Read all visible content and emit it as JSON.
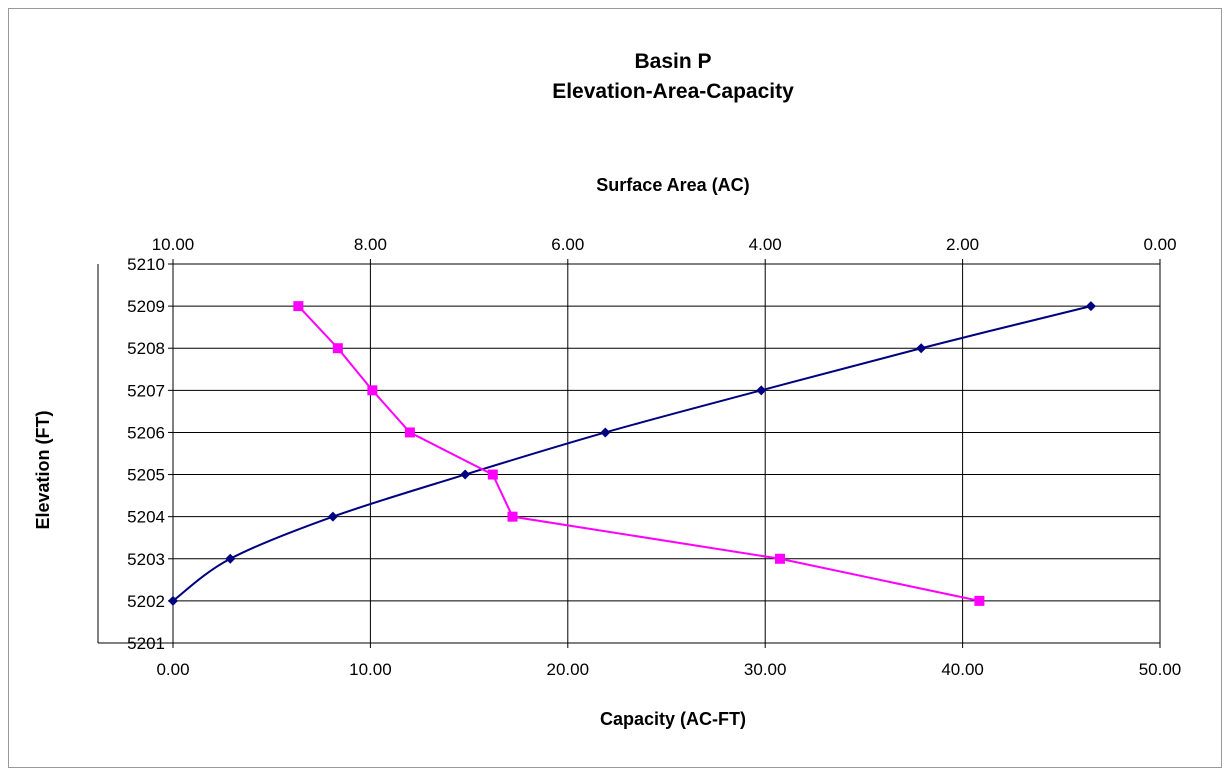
{
  "chart_data": {
    "type": "line",
    "title": [
      "Basin P",
      "Elevation-Area-Capacity"
    ],
    "top_axis": {
      "label": "Surface Area (AC)",
      "range": [
        10,
        0
      ],
      "ticks": [
        "10.00",
        "8.00",
        "6.00",
        "4.00",
        "2.00",
        "0.00"
      ],
      "tick_values": [
        10,
        8,
        6,
        4,
        2,
        0
      ]
    },
    "x_axis": {
      "label": "Capacity (AC-FT)",
      "range": [
        0,
        50
      ],
      "ticks": [
        "0.00",
        "10.00",
        "20.00",
        "30.00",
        "40.00",
        "50.00"
      ],
      "tick_values": [
        0,
        10,
        20,
        30,
        40,
        50
      ]
    },
    "y_axis": {
      "label": "Elevation (FT)",
      "range": [
        5201,
        5210
      ],
      "ticks": [
        "5201",
        "5202",
        "5203",
        "5204",
        "5205",
        "5206",
        "5207",
        "5208",
        "5209",
        "5210"
      ],
      "tick_values": [
        5201,
        5202,
        5203,
        5204,
        5205,
        5206,
        5207,
        5208,
        5209,
        5210
      ]
    },
    "grid": true,
    "series": [
      {
        "axis": "capacity",
        "color": "#000080",
        "marker": "diamond",
        "smooth": true,
        "points": [
          {
            "x": 0.0,
            "y": 5202
          },
          {
            "x": 2.9,
            "y": 5203
          },
          {
            "x": 8.1,
            "y": 5204
          },
          {
            "x": 14.8,
            "y": 5205
          },
          {
            "x": 21.9,
            "y": 5206
          },
          {
            "x": 29.8,
            "y": 5207
          },
          {
            "x": 37.9,
            "y": 5208
          },
          {
            "x": 46.5,
            "y": 5209
          }
        ]
      },
      {
        "axis": "surface_area",
        "color": "#ff00ff",
        "marker": "square",
        "smooth": false,
        "points": [
          {
            "x": 1.83,
            "y": 5202
          },
          {
            "x": 3.85,
            "y": 5203
          },
          {
            "x": 6.56,
            "y": 5204
          },
          {
            "x": 6.76,
            "y": 5205
          },
          {
            "x": 7.6,
            "y": 5206
          },
          {
            "x": 7.98,
            "y": 5207
          },
          {
            "x": 8.33,
            "y": 5208
          },
          {
            "x": 8.73,
            "y": 5209
          }
        ]
      }
    ]
  }
}
